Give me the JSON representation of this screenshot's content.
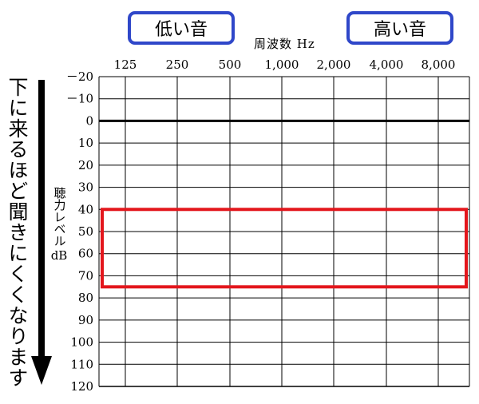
{
  "labels": {
    "low_tone": "低い音",
    "high_tone": "高い音",
    "side_note": "下に来るほど聞きにくくなります"
  },
  "chart_data": {
    "type": "line",
    "title": "",
    "xlabel": "周波数 Hz",
    "ylabel": "聴力レベル",
    "ylabel_unit": "dB",
    "categories": [
      "125",
      "250",
      "500",
      "1,000",
      "2,000",
      "4,000",
      "8,000"
    ],
    "y_ticks": [
      -20,
      -10,
      0,
      10,
      20,
      30,
      40,
      50,
      60,
      70,
      80,
      90,
      100,
      110,
      120
    ],
    "y_tick_labels": [
      "－20",
      "－10",
      "0",
      "10",
      "20",
      "30",
      "40",
      "50",
      "60",
      "70",
      "80",
      "90",
      "100",
      "110",
      "120"
    ],
    "ylim": [
      -20,
      120
    ],
    "y_inverted": true,
    "grid": true,
    "reference_line_db": 0,
    "highlight_band_db": [
      40,
      75
    ],
    "colors": {
      "grid": "#000000",
      "highlight": "#e3161c",
      "tag_border": "#2f47c9",
      "arrow": "#000000"
    }
  }
}
